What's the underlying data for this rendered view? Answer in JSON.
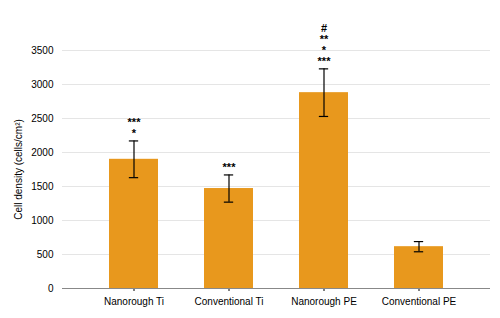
{
  "chart_data": {
    "type": "bar",
    "categories": [
      "Nanorough Ti",
      "Conventional Ti",
      "Nanorough PE",
      "Conventional PE"
    ],
    "values": [
      1900,
      1470,
      2880,
      615
    ],
    "errors": [
      270,
      200,
      350,
      75
    ],
    "color": "#E8981D",
    "ylabel": "Cell density (cells/cm²)",
    "ylim": [
      0,
      3500
    ],
    "yticks": [
      0,
      500,
      1000,
      1500,
      2000,
      2500,
      3000,
      3500
    ],
    "grid": true,
    "annotations": [
      {
        "category": "Nanorough Ti",
        "texts": [
          "*",
          "***"
        ]
      },
      {
        "category": "Conventional Ti",
        "texts": [
          "***"
        ]
      },
      {
        "category": "Nanorough PE",
        "texts": [
          "***",
          "*",
          "**",
          "#"
        ]
      }
    ]
  }
}
